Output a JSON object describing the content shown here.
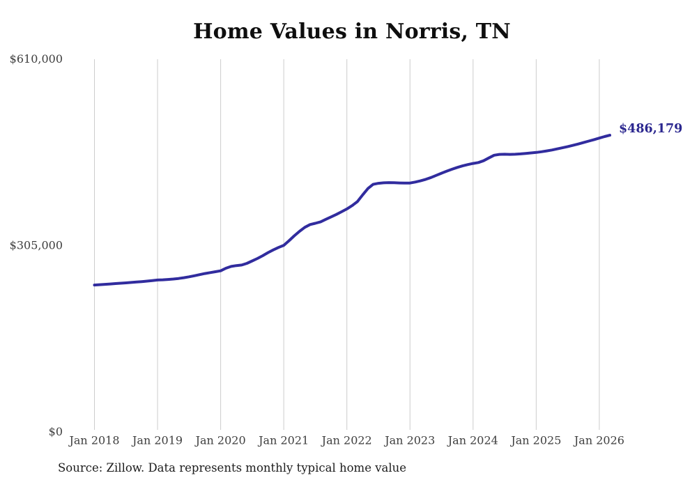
{
  "chart_data": {
    "type": "line",
    "title": "Home Values in Norris, TN",
    "xlabel": "",
    "ylabel": "",
    "ylim": [
      0,
      610000
    ],
    "grid": "vertical-only",
    "legend": "none",
    "end_annotation": "$486,179",
    "latest_value": 486179,
    "source": "Source: Zillow. Data represents monthly typical home value",
    "y_ticks": [
      {
        "label": "$0",
        "value": 0
      },
      {
        "label": "$305,000",
        "value": 305000
      },
      {
        "label": "$610,000",
        "value": 610000
      }
    ],
    "x_ticks": [
      {
        "label": "Jan 2018",
        "month": 0
      },
      {
        "label": "Jan 2019",
        "month": 12
      },
      {
        "label": "Jan 2020",
        "month": 24
      },
      {
        "label": "Jan 2021",
        "month": 36
      },
      {
        "label": "Jan 2022",
        "month": 48
      },
      {
        "label": "Jan 2023",
        "month": 60
      },
      {
        "label": "Jan 2024",
        "month": 72
      },
      {
        "label": "Jan 2025",
        "month": 84
      },
      {
        "label": "Jan 2026",
        "month": 96
      }
    ],
    "series": [
      {
        "name": "Monthly typical home value",
        "interval": "monthly",
        "x_start": "Jan 2018",
        "x_end": "Mar 2026",
        "values": [
          241000,
          241600,
          242200,
          242800,
          243400,
          244000,
          244600,
          245200,
          245900,
          246600,
          247400,
          248300,
          249200,
          249600,
          250100,
          250800,
          251800,
          253000,
          254500,
          256200,
          258000,
          259800,
          261300,
          262800,
          264300,
          268500,
          271500,
          272800,
          273800,
          276500,
          280500,
          284500,
          289000,
          294000,
          298500,
          302500,
          306000,
          313500,
          321500,
          329000,
          335500,
          340000,
          342000,
          344500,
          348500,
          352500,
          356500,
          361000,
          365500,
          371000,
          377500,
          388500,
          399000,
          405800,
          407500,
          408300,
          408600,
          408400,
          408100,
          407900,
          408000,
          409500,
          411500,
          414000,
          417000,
          420500,
          424000,
          427500,
          430500,
          433500,
          436000,
          438200,
          440000,
          441500,
          444500,
          449000,
          453500,
          454800,
          455000,
          454800,
          455000,
          455600,
          456400,
          457200,
          458000,
          459200,
          460500,
          462000,
          463800,
          465700,
          467600,
          469600,
          471800,
          474200,
          476600,
          479000,
          481500,
          484000,
          486179
        ]
      }
    ],
    "colors": {
      "line": "#312c9e",
      "annotation": "#2b278f",
      "grid": "#cccccc",
      "tick_text": "#3e3e3e",
      "title_text": "#0e0e0e",
      "source_text": "#1c1c1c",
      "background": "#ffffff"
    }
  }
}
